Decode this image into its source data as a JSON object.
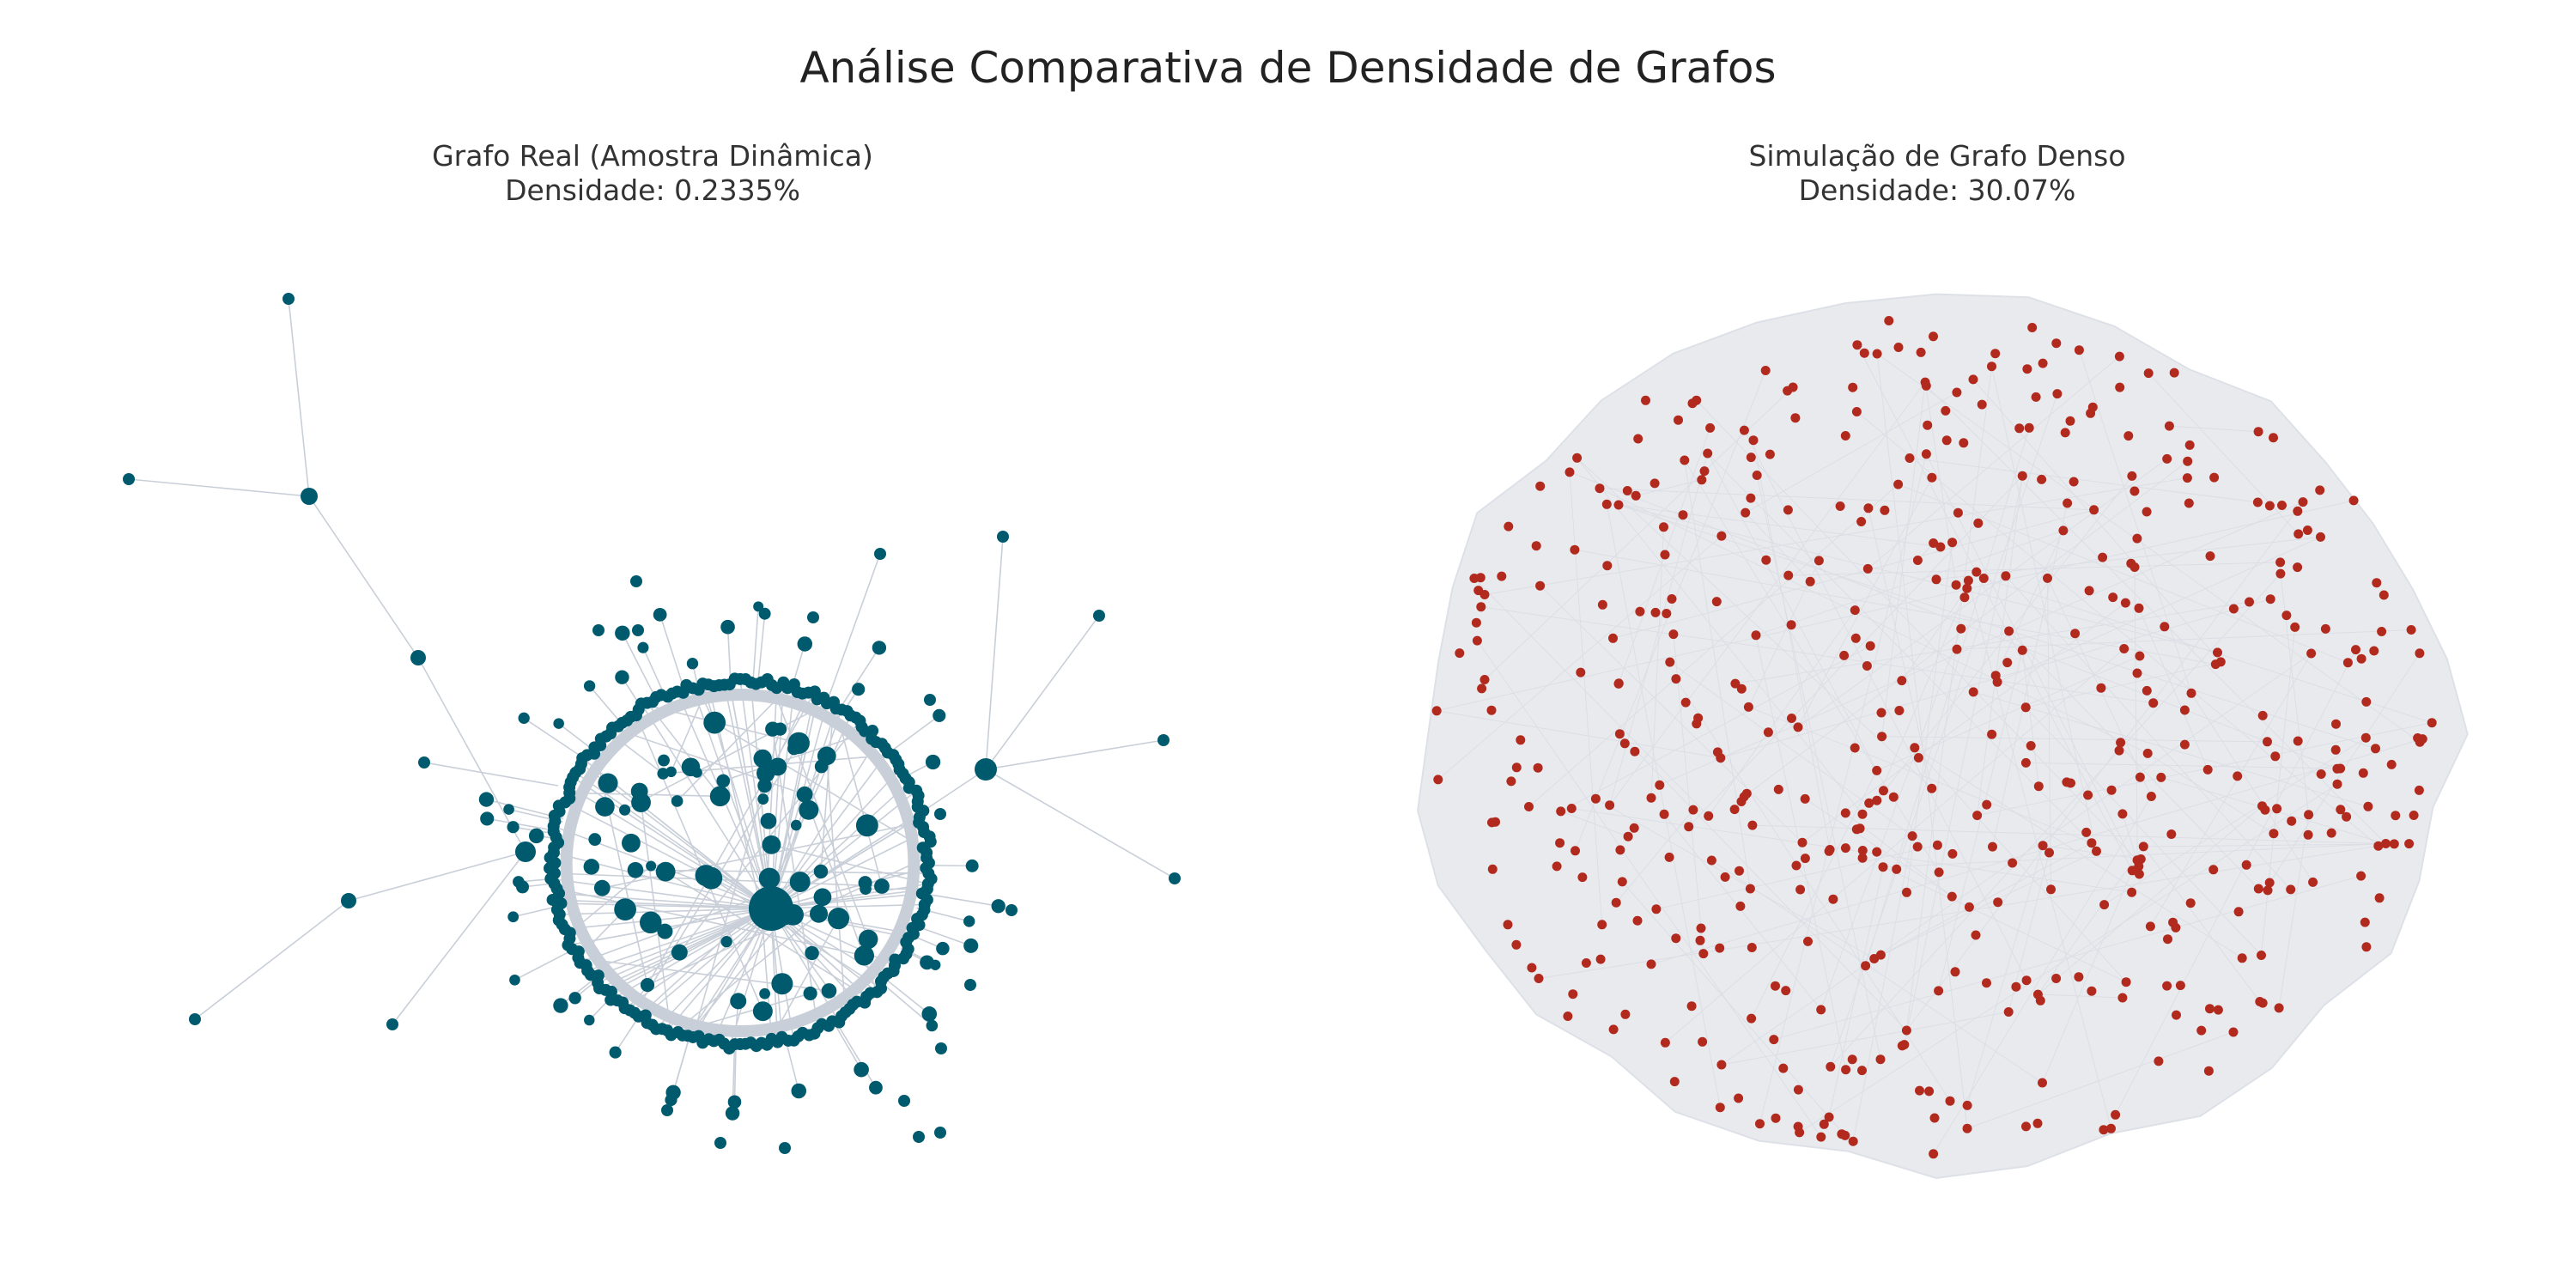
{
  "figure": {
    "title": "Análise Comparativa de Densidade de Grafos"
  },
  "panels": [
    {
      "id": "real",
      "title_line1": "Grafo Real (Amostra Dinâmica)",
      "title_line2": "Densidade: 0.2335%",
      "density_percent": 0.2335,
      "node_color": "#005a6e",
      "edge_color": "#c9cfd8"
    },
    {
      "id": "dense",
      "title_line1": "Simulação de Grafo Denso",
      "title_line2": "Densidade: 30.07%",
      "density_percent": 30.07,
      "node_color": "#b22a1e",
      "edge_color": "#e6e9ee"
    }
  ],
  "colors": {
    "background": "#ffffff",
    "title_text": "#222222",
    "real_nodes": "#005a6e",
    "dense_nodes": "#b22a1e",
    "edges": "#c9cfd8"
  }
}
